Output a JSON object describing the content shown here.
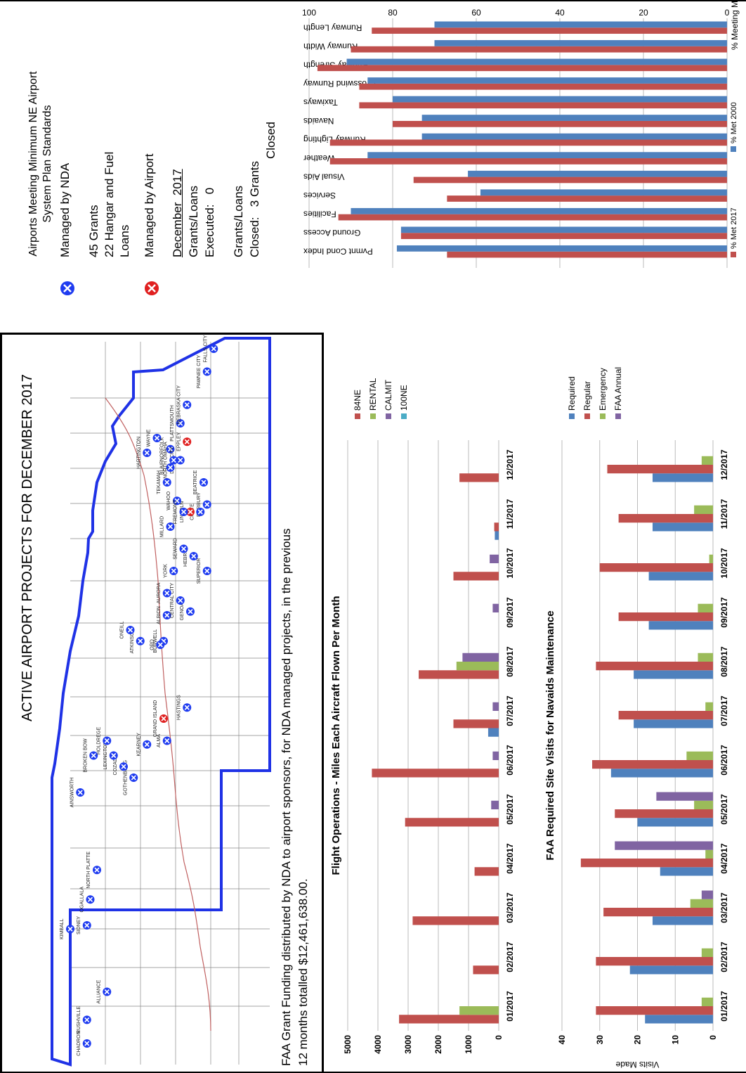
{
  "colors": {
    "red": "#c0504d",
    "blue": "#4f81bd",
    "green": "#9bbb59",
    "purple": "#8064a2",
    "cyan": "#4bacc6",
    "map_border": "#1f32e6",
    "map_marker_blue": "#1f3cf0",
    "map_marker_red": "#e02020"
  },
  "map_panel": {
    "title": "ACTIVE AIRPORT PROJECTS FOR DECEMBER 2017",
    "legend": {
      "nda_icon": "x-circle-blue-icon",
      "nda_label": "Managed by NDA",
      "nda_detail_1": "45 Grants",
      "nda_detail_2": "22 Hangar and Fuel",
      "nda_detail_3": "Loans",
      "airport_icon": "x-circle-red-icon",
      "airport_label": "Managed by Airport",
      "month_label": "December  2017",
      "executed_1": "Grants/Loans",
      "executed_2": "Executed:   0",
      "closed_1": "Grants/Loans",
      "closed_2": "Closed:   3 Grants",
      "closed_3": "Closed"
    },
    "footer_1": "FAA Grant Funding distributed by NDA to airport sponsors, for NDA managed projects, in the previous",
    "footer_2": "12 months totalled $12,461,638.00.",
    "cities": [
      {
        "name": "CHADRON",
        "c": "b"
      },
      {
        "name": "RUSHVILLE",
        "c": "b"
      },
      {
        "name": "ALLIANCE",
        "c": "b"
      },
      {
        "name": "KIMBALL",
        "c": "b"
      },
      {
        "name": "SIDNEY",
        "c": "b"
      },
      {
        "name": "OGALLALA",
        "c": "b"
      },
      {
        "name": "NORTH PLATTE",
        "c": "b"
      },
      {
        "name": "AINSWORTH",
        "c": "b"
      },
      {
        "name": "BROKEN BOW",
        "c": "b"
      },
      {
        "name": "GOTHENBURG",
        "c": "b"
      },
      {
        "name": "COZAD",
        "c": "b"
      },
      {
        "name": "LEXINGTON",
        "c": "b"
      },
      {
        "name": "HOLDREGE",
        "c": "b"
      },
      {
        "name": "ATKINSON",
        "c": "b"
      },
      {
        "name": "ONEILL",
        "c": "b"
      },
      {
        "name": "BURWELL",
        "c": "b"
      },
      {
        "name": "ORD",
        "c": "b"
      },
      {
        "name": "KEARNEY",
        "c": "b"
      },
      {
        "name": "ALMA",
        "c": "b"
      },
      {
        "name": "GRAND ISLAND",
        "c": "r"
      },
      {
        "name": "ALBION",
        "c": "b"
      },
      {
        "name": "HASTINGS",
        "c": "b"
      },
      {
        "name": "GENOA",
        "c": "b"
      },
      {
        "name": "CENTRAL CITY",
        "c": "b"
      },
      {
        "name": "AURORA",
        "c": "b"
      },
      {
        "name": "YORK",
        "c": "b"
      },
      {
        "name": "HEBRON",
        "c": "b"
      },
      {
        "name": "SUPERIOR",
        "c": "b"
      },
      {
        "name": "HARTINGTON",
        "c": "b"
      },
      {
        "name": "WAYNE",
        "c": "b"
      },
      {
        "name": "NORFOLK",
        "c": "b"
      },
      {
        "name": "DAVID CITY",
        "c": "b"
      },
      {
        "name": "SEWARD",
        "c": "b"
      },
      {
        "name": "FAIRBURY",
        "c": "b"
      },
      {
        "name": "CRETE",
        "c": "b"
      },
      {
        "name": "BEATRICE",
        "c": "b"
      },
      {
        "name": "LINCOLN",
        "c": "r"
      },
      {
        "name": "WAHOO",
        "c": "b"
      },
      {
        "name": "FREMONT",
        "c": "b"
      },
      {
        "name": "TEKAMAH",
        "c": "b"
      },
      {
        "name": "BLAIR",
        "c": "b"
      },
      {
        "name": "NORTH OMAHA",
        "c": "b"
      },
      {
        "name": "EPPLEY",
        "c": "r"
      },
      {
        "name": "MILLARD",
        "c": "b"
      },
      {
        "name": "PLATTSMOUTH",
        "c": "b"
      },
      {
        "name": "NEBRASKA CITY",
        "c": "b"
      },
      {
        "name": "PAWNEE CITY",
        "c": "b"
      },
      {
        "name": "FALLS CITY",
        "c": "b"
      }
    ]
  },
  "chart_data": [
    {
      "type": "bar",
      "orientation": "horizontal",
      "title": "Airports Meeting Minimum NE Airport System Plan Standards",
      "xlabel": "% Meeting Min. Std.",
      "xlim": [
        0,
        100
      ],
      "xticks": [
        0,
        20,
        40,
        60,
        80,
        100
      ],
      "categories": [
        "Pvmnt Cond Index",
        "Ground Access",
        "Facilities",
        "Services",
        "Visual Aids",
        "Weather",
        "Runway Lighting",
        "Navaids",
        "Taxiways",
        "Crosswind Runway",
        "Runway Strength",
        "Runway Width",
        "Runway Length"
      ],
      "series": [
        {
          "name": "% Met 2017",
          "color": "#c0504d",
          "values": [
            67,
            78,
            93,
            67,
            75,
            95,
            95,
            80,
            88,
            88,
            98,
            90,
            85
          ]
        },
        {
          "name": "% Met 2000",
          "color": "#4f81bd",
          "values": [
            79,
            78,
            90,
            59,
            62,
            86,
            73,
            73,
            80,
            86,
            91,
            70,
            70
          ]
        }
      ],
      "legend": "bottom"
    },
    {
      "type": "bar",
      "title": "Flight Operations - Miles Each Aircraft Flown Per Month",
      "ylim": [
        0,
        5000
      ],
      "yticks": [
        0,
        1000,
        2000,
        3000,
        4000,
        5000
      ],
      "categories": [
        "01/2017",
        "02/2017",
        "03/2017",
        "04/2017",
        "05/2017",
        "06/2017",
        "07/2017",
        "08/2017",
        "09/2017",
        "10/2017",
        "11/2017",
        "12/2017"
      ],
      "series": [
        {
          "name": "84NE",
          "color": "#c0504d",
          "values": [
            3300,
            850,
            2850,
            800,
            3100,
            4200,
            1500,
            2650,
            0,
            1500,
            150,
            1300
          ]
        },
        {
          "name": "RENTAL",
          "color": "#9bbb59",
          "values": [
            1300,
            0,
            0,
            0,
            0,
            0,
            0,
            1400,
            0,
            0,
            0,
            0
          ]
        },
        {
          "name": "CALMIT",
          "color": "#8064a2",
          "values": [
            0,
            0,
            0,
            0,
            250,
            200,
            200,
            1200,
            200,
            300,
            0,
            0
          ]
        },
        {
          "name": "100NE",
          "color": "#4bacc6",
          "values": [
            0,
            0,
            0,
            0,
            0,
            0,
            0,
            0,
            0,
            0,
            0,
            0
          ]
        }
      ],
      "extra_bars": [
        {
          "month": "07/2017",
          "color": "#4f81bd",
          "value": 350
        },
        {
          "month": "11/2017",
          "color": "#4f81bd",
          "value": 130
        }
      ],
      "legend": "right"
    },
    {
      "type": "bar",
      "title": "FAA Required Site Visits for Navaids Maintenance",
      "ylabel": "Visits Made",
      "ylim": [
        0,
        40
      ],
      "yticks": [
        0,
        10,
        20,
        30,
        40
      ],
      "categories": [
        "01/2017",
        "02/2017",
        "03/2017",
        "04/2017",
        "05/2017",
        "06/2017",
        "07/2017",
        "08/2017",
        "09/2017",
        "10/2017",
        "11/2017",
        "12/2017"
      ],
      "series": [
        {
          "name": "Required",
          "color": "#4f81bd",
          "values": [
            18,
            22,
            16,
            14,
            20,
            27,
            21,
            21,
            17,
            17,
            16,
            16
          ]
        },
        {
          "name": "Regular",
          "color": "#c0504d",
          "values": [
            31,
            31,
            29,
            35,
            26,
            32,
            25,
            31,
            25,
            30,
            25,
            28
          ]
        },
        {
          "name": "Emergency",
          "color": "#9bbb59",
          "values": [
            3,
            3,
            6,
            2,
            5,
            7,
            2,
            4,
            4,
            1,
            5,
            3
          ]
        },
        {
          "name": "FAA Annual",
          "color": "#8064a2",
          "values": [
            0,
            0,
            3,
            26,
            15,
            0,
            0,
            0,
            0,
            0,
            0,
            0
          ]
        }
      ],
      "legend": "right"
    }
  ]
}
